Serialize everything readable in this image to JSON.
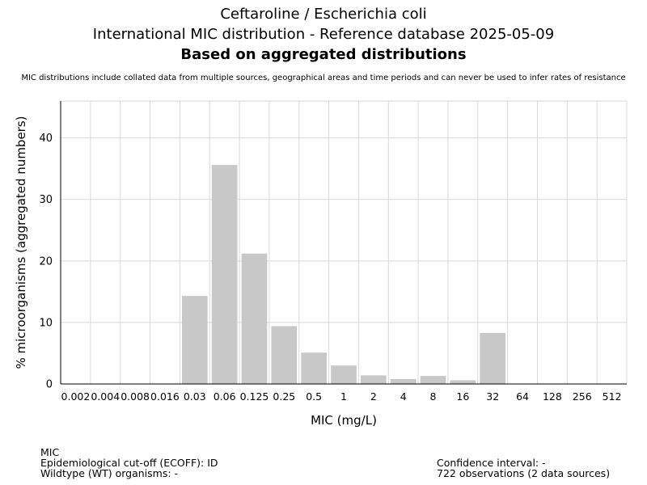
{
  "title": "Ceftaroline / Escherichia coli",
  "subtitle": "International MIC distribution - Reference database 2025-05-09",
  "heading": "Based on aggregated distributions",
  "disclaimer": "MIC distributions include collated data from multiple sources, geographical areas and time periods and can never be used to infer rates of resistance",
  "footer": {
    "mic_label": "MIC",
    "ecoff": "Epidemiological cut-off (ECOFF): ID",
    "wildtype": "Wildtype (WT) organisms:  -",
    "confidence": "Confidence interval: -",
    "observations": "722 observations (2 data sources)"
  },
  "chart_data": {
    "type": "bar",
    "xlabel": "MIC (mg/L)",
    "ylabel": "% microorganisms (aggregated numbers)",
    "categories": [
      "0.002",
      "0.004",
      "0.008",
      "0.016",
      "0.03",
      "0.06",
      "0.125",
      "0.25",
      "0.5",
      "1",
      "2",
      "4",
      "8",
      "16",
      "32",
      "64",
      "128",
      "256",
      "512"
    ],
    "values": [
      0,
      0,
      0,
      0,
      14.3,
      35.6,
      21.2,
      9.4,
      5.1,
      3.0,
      1.4,
      0.8,
      1.3,
      0.6,
      8.3,
      0,
      0,
      0,
      0
    ],
    "ylim": [
      0,
      46
    ],
    "yticks": [
      0,
      10,
      20,
      30,
      40
    ],
    "grid": true,
    "bar_color": "#c8c8c8",
    "grid_color": "#d9d9d9"
  }
}
